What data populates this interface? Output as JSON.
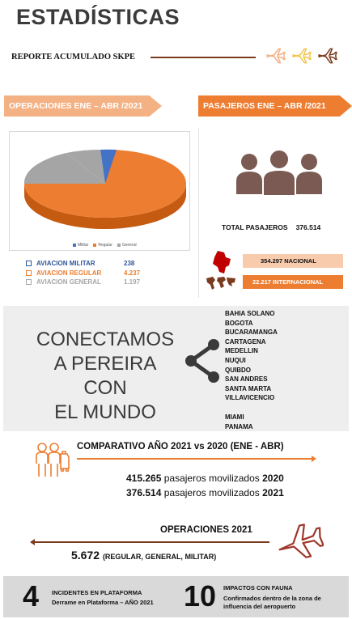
{
  "header": {
    "title": "ESTADÍSTICAS",
    "reporte": "REPORTE ACUMULADO SKPE"
  },
  "operaciones": {
    "banner": "OPERACIONES ENE – ABR /2021",
    "pie": {
      "legend": [
        "Militar",
        "Regular",
        "General"
      ],
      "colors": [
        "#4472c4",
        "#ed7d31",
        "#a5a5a5"
      ]
    },
    "items": [
      {
        "label": "AVIACION MILITAR",
        "value": "238",
        "color": "#2f5597"
      },
      {
        "label": "AVIACION REGULAR",
        "value": "4.237",
        "color": "#ed7d31"
      },
      {
        "label": "AVIACION GENERAL",
        "value": "1.197",
        "color": "#a5a5a5"
      }
    ]
  },
  "pasajeros": {
    "banner": "PASAJEROS ENE – ABR /2021",
    "total_label": "TOTAL PASAJEROS",
    "total_value": "376.514",
    "nacional": "354.297  NACIONAL",
    "internacional": "22.217  INTERNACIONAL"
  },
  "conectamos": {
    "text_lines": [
      "CONECTAMOS",
      "A PEREIRA CON",
      "EL MUNDO"
    ],
    "national_cities": [
      "BAHIA SOLANO",
      "BOGOTA",
      "BUCARAMANGA",
      "CARTAGENA",
      "MEDELLIN",
      "NUQUI",
      "QUIBDO",
      "SAN ANDRES",
      "SANTA MARTA",
      "VILLAVICENCIO"
    ],
    "international_cities": [
      "MIAMI",
      "PANAMA"
    ]
  },
  "comparativo": {
    "title": "COMPARATIVO AÑO 2021 vs 2020 (ENE - ABR)",
    "row1": {
      "number": "415.265",
      "text": " pasajeros movilizados ",
      "year": "2020"
    },
    "row2": {
      "number": "376.514",
      "text": " pasajeros movilizados ",
      "year": "2021"
    }
  },
  "operaciones2021": {
    "title": "OPERACIONES 2021",
    "value": "5.672",
    "detail": "(REGULAR, GENERAL, MILITAR)"
  },
  "footer": {
    "incidentes_num": "4",
    "incidentes_line1": "INCIDENTES EN PLATAFORMA",
    "incidentes_line2": "Derrame en Plataforma – AÑO 2021",
    "fauna_num": "10",
    "fauna_line1": "IMPACTOS CON FAUNA",
    "fauna_line2": "Confirmados dentro de la zona de influencia del aeropuerto"
  },
  "colors": {
    "accent": "#ed7d31",
    "light_accent": "#f4b183",
    "brown": "#7a3a1e",
    "people": "#7a5a52"
  }
}
